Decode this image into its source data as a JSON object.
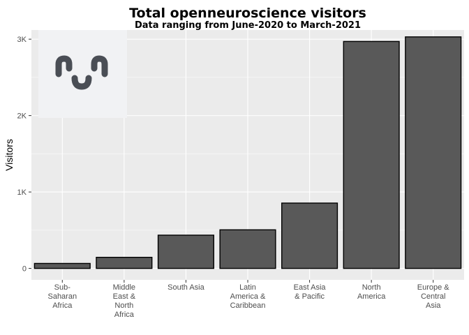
{
  "chart_data": {
    "type": "bar",
    "title": "Total openneuroscience visitors",
    "subtitle": "Data ranging from June-2020 to March-2021",
    "xlabel": "",
    "ylabel": "Visitors",
    "ylim": [
      -150,
      3120
    ],
    "yticks": [
      0,
      1000,
      2000,
      3000
    ],
    "ytick_labels": [
      "0",
      "1K",
      "2K",
      "3K"
    ],
    "categories": [
      [
        "Sub-",
        "Saharan",
        "Africa"
      ],
      [
        "Middle",
        "East &",
        "North",
        "Africa"
      ],
      [
        "South Asia"
      ],
      [
        "Latin",
        "America &",
        "Caribbean"
      ],
      [
        "East Asia",
        "& Pacific"
      ],
      [
        "North",
        "America"
      ],
      [
        "Europe &",
        "Central",
        "Asia"
      ]
    ],
    "values": [
      65,
      145,
      435,
      505,
      855,
      2970,
      3030
    ],
    "grid": true,
    "colors": {
      "panel": "#ebebeb",
      "grid_major": "#ffffff",
      "bar_fill": "#595959",
      "bar_stroke": "#000000",
      "logo_bg": "#f1f2f4",
      "logo_fg": "#4a4e55"
    },
    "logo": "openneuroscience-logo"
  }
}
